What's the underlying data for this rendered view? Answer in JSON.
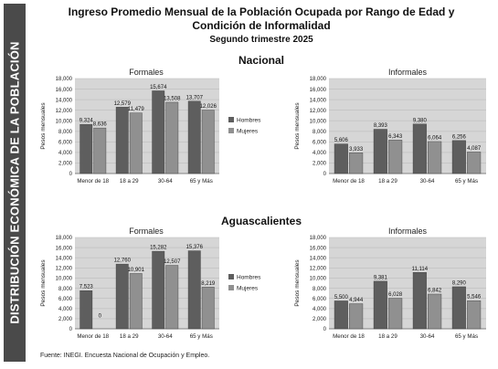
{
  "sidebar_label": "DISTRIBUCIÓN ECONÓMICA DE LA POBLACIÓN",
  "title_line1": "Ingreso Promedio Mensual de la Población Ocupada por Rango de Edad y",
  "title_line2": "Condición de Informalidad",
  "subtitle": "Segundo trimestre 2025",
  "region_nacional": "Nacional",
  "region_ags": "Aguascalientes",
  "source": "Fuente: INEGI. Encuesta Nacional de Ocupación y Empleo.",
  "colors": {
    "hombres": "#5e5e5e",
    "mujeres": "#909090",
    "plot_bg": "#d6d6d6"
  },
  "chart_data": [
    {
      "type": "bar",
      "title": "Formales",
      "region": "Nacional",
      "ylabel": "Pesos mensuales",
      "ylim": [
        0,
        18000
      ],
      "yticks": [
        "0",
        "2,000",
        "4,000",
        "6,000",
        "8,000",
        "10,000",
        "12,000",
        "14,000",
        "16,000",
        "18,000"
      ],
      "categories": [
        "Menor de 18",
        "18 a 29",
        "30-64",
        "65 y Más"
      ],
      "series": [
        {
          "name": "Hombres",
          "values": [
            9324,
            12579,
            15674,
            13707
          ],
          "labels": [
            "9,324",
            "12,579",
            "15,674",
            "13,707"
          ]
        },
        {
          "name": "Mujeres",
          "values": [
            8636,
            11479,
            13508,
            12026
          ],
          "labels": [
            "8,636",
            "11,479",
            "13,508",
            "12,026"
          ]
        }
      ],
      "legend": "right"
    },
    {
      "type": "bar",
      "title": "Informales",
      "region": "Nacional",
      "ylabel": "Pesos mensuales",
      "ylim": [
        0,
        18000
      ],
      "yticks": [
        "0",
        "2,000",
        "4,000",
        "6,000",
        "8,000",
        "10,000",
        "12,000",
        "14,000",
        "16,000",
        "18,000"
      ],
      "categories": [
        "Menor de 18",
        "18 a 29",
        "30-64",
        "65 y Más"
      ],
      "series": [
        {
          "name": "Hombres",
          "values": [
            5606,
            8393,
            9380,
            6256
          ],
          "labels": [
            "5,606",
            "8,393",
            "9,380",
            "6,256"
          ]
        },
        {
          "name": "Mujeres",
          "values": [
            3933,
            6343,
            6064,
            4087
          ],
          "labels": [
            "3,933",
            "6,343",
            "6,064",
            "4,087"
          ]
        }
      ]
    },
    {
      "type": "bar",
      "title": "Formales",
      "region": "Aguascalientes",
      "ylabel": "Pesos mensuales",
      "ylim": [
        0,
        18000
      ],
      "yticks": [
        "0",
        "2,000",
        "4,000",
        "6,000",
        "8,000",
        "10,000",
        "12,000",
        "14,000",
        "16,000",
        "18,000"
      ],
      "categories": [
        "Menor de 18",
        "18 a 29",
        "30-64",
        "65 y Más"
      ],
      "series": [
        {
          "name": "Hombres",
          "values": [
            7523,
            12760,
            15282,
            15376
          ],
          "labels": [
            "7,523",
            "12,760",
            "15,282",
            "15,376"
          ]
        },
        {
          "name": "Mujeres",
          "values": [
            0,
            10901,
            12507,
            8219
          ],
          "labels": [
            "0",
            "10,901",
            "12,507",
            "8,219"
          ]
        }
      ],
      "legend": "right"
    },
    {
      "type": "bar",
      "title": "Informales",
      "region": "Aguascalientes",
      "ylabel": "Pesos mensuales",
      "ylim": [
        0,
        18000
      ],
      "yticks": [
        "0",
        "2,000",
        "4,000",
        "6,000",
        "8,000",
        "10,000",
        "12,000",
        "14,000",
        "16,000",
        "18,000"
      ],
      "categories": [
        "Menor de 18",
        "18 a 29",
        "30-64",
        "65 y Más"
      ],
      "series": [
        {
          "name": "Hombres",
          "values": [
            5500,
            9381,
            11114,
            8290
          ],
          "labels": [
            "5,500",
            "9,381",
            "11,114",
            "8,290"
          ]
        },
        {
          "name": "Mujeres",
          "values": [
            4944,
            6028,
            6842,
            5546
          ],
          "labels": [
            "4,944",
            "6,028",
            "6,842",
            "5,546"
          ]
        }
      ]
    }
  ]
}
